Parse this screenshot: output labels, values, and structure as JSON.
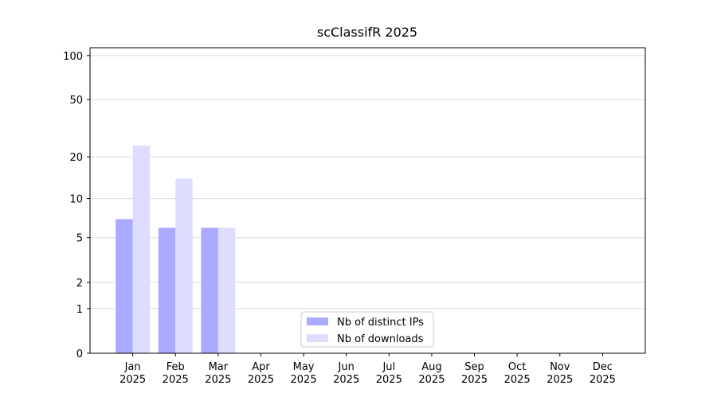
{
  "chart_data": {
    "type": "bar",
    "title": "scClassifR 2025",
    "categories": [
      "Jan 2025",
      "Feb 2025",
      "Mar 2025",
      "Apr 2025",
      "May 2025",
      "Jun 2025",
      "Jul 2025",
      "Aug 2025",
      "Sep 2025",
      "Oct 2025",
      "Nov 2025",
      "Dec 2025"
    ],
    "series": [
      {
        "name": "Nb of distinct IPs",
        "color": "#aaaaff",
        "values": [
          7,
          6,
          6,
          null,
          null,
          null,
          null,
          null,
          null,
          null,
          null,
          null
        ]
      },
      {
        "name": "Nb of downloads",
        "color": "#ddddff",
        "values": [
          24,
          14,
          6,
          null,
          null,
          null,
          null,
          null,
          null,
          null,
          null,
          null
        ]
      }
    ],
    "y_scale": "log1p",
    "ylim": [
      0,
      113
    ],
    "yticks": [
      0,
      1,
      2,
      5,
      10,
      20,
      50,
      100
    ],
    "grid": true,
    "legend": "lower center"
  }
}
